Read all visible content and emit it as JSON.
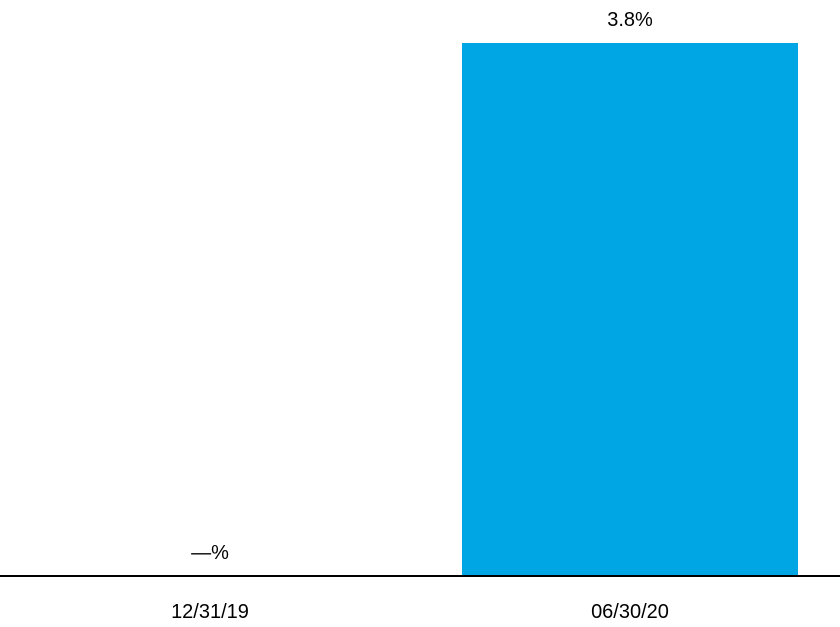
{
  "chart_data": {
    "type": "bar",
    "categories": [
      "12/31/19",
      "06/30/20"
    ],
    "values": [
      0,
      3.8
    ],
    "data_labels": [
      "—%",
      "3.8%"
    ],
    "ylim": [
      0,
      3.8
    ],
    "grid": false,
    "legend": "none",
    "bar_color": "#00A5E3",
    "axis_color": "#000000"
  }
}
